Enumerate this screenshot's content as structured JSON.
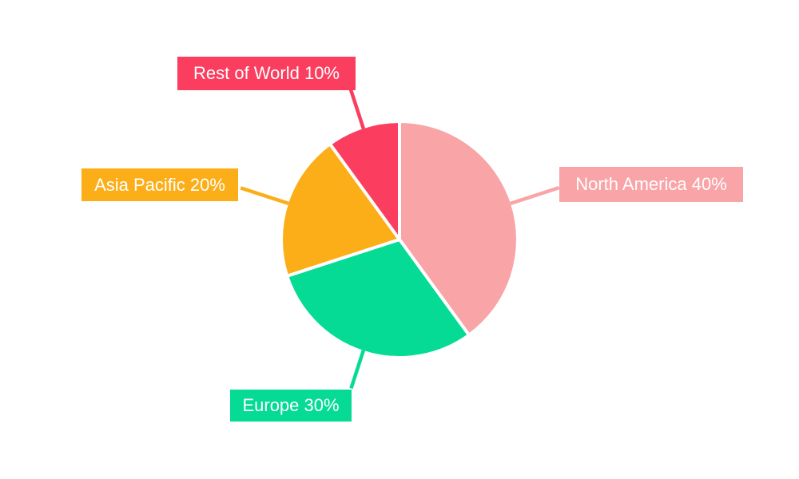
{
  "page": {
    "background_color": "#ffffff",
    "text_color": "#ffffff"
  },
  "chart_data": {
    "type": "pie",
    "title": "",
    "start_angle_deg": 0,
    "direction": "clockwise",
    "legend_position": "none",
    "labels_style": "external-boxes-with-leader-lines",
    "slices": [
      {
        "label": "North America",
        "value": 40,
        "unit": "%",
        "display": "North America 40%",
        "color": "#F9A4A7"
      },
      {
        "label": "Europe",
        "value": 30,
        "unit": "%",
        "display": "Europe 30%",
        "color": "#05DB94"
      },
      {
        "label": "Asia Pacific",
        "value": 20,
        "unit": "%",
        "display": "Asia Pacific 20%",
        "color": "#FBAE17"
      },
      {
        "label": "Rest of World",
        "value": 10,
        "unit": "%",
        "display": "Rest of World 10%",
        "color": "#FB3D5F"
      }
    ]
  }
}
